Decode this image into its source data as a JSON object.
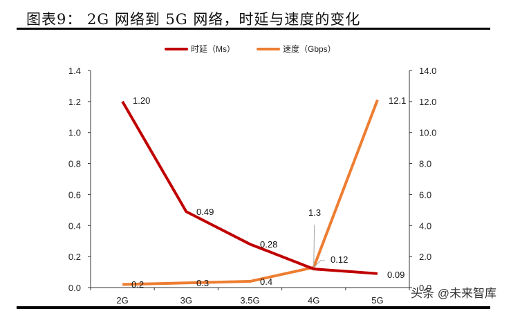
{
  "header": {
    "title": "图表9：  2G 网络到 5G 网络，时延与速度的变化"
  },
  "legend": {
    "items": [
      {
        "label": "时延（Ms）",
        "color": "#C00000"
      },
      {
        "label": "速度（Gbps）",
        "color": "#ED7D31"
      }
    ]
  },
  "watermark": "头条 @未来智库",
  "colors": {
    "latency": "#C00000",
    "speed": "#ED7D31",
    "axis": "#333333",
    "leader": "#A6A6A6"
  },
  "chart_data": {
    "type": "line",
    "title": "2G 网络到 5G 网络，时延与速度的变化",
    "categories": [
      "2G",
      "3G",
      "3.5G",
      "4G",
      "5G"
    ],
    "series": [
      {
        "name": "时延（Ms）",
        "axis": "left",
        "values": [
          1.2,
          0.49,
          0.28,
          0.12,
          0.09
        ],
        "labels": [
          "1.20",
          "0.49",
          "0.28",
          "0.12",
          "0.09"
        ],
        "color": "#C00000"
      },
      {
        "name": "速度（Gbps）",
        "axis": "right",
        "values": [
          0.2,
          0.3,
          0.4,
          1.3,
          12.1
        ],
        "labels": [
          "0.2",
          "0.3",
          "0.4",
          "1.3",
          "12.1"
        ],
        "color": "#ED7D31"
      }
    ],
    "y_left": {
      "min": 0,
      "max": 1.4,
      "ticks": [
        "0.0",
        "0.2",
        "0.4",
        "0.6",
        "0.8",
        "1.0",
        "1.2",
        "1.4"
      ]
    },
    "y_right": {
      "min": 0,
      "max": 14,
      "ticks": [
        "0.0",
        "2.0",
        "4.0",
        "6.0",
        "8.0",
        "10.0",
        "12.0",
        "14.0"
      ]
    },
    "xlabel": "",
    "ylabel_left": "",
    "ylabel_right": "",
    "grid": false,
    "legend_position": "top"
  }
}
